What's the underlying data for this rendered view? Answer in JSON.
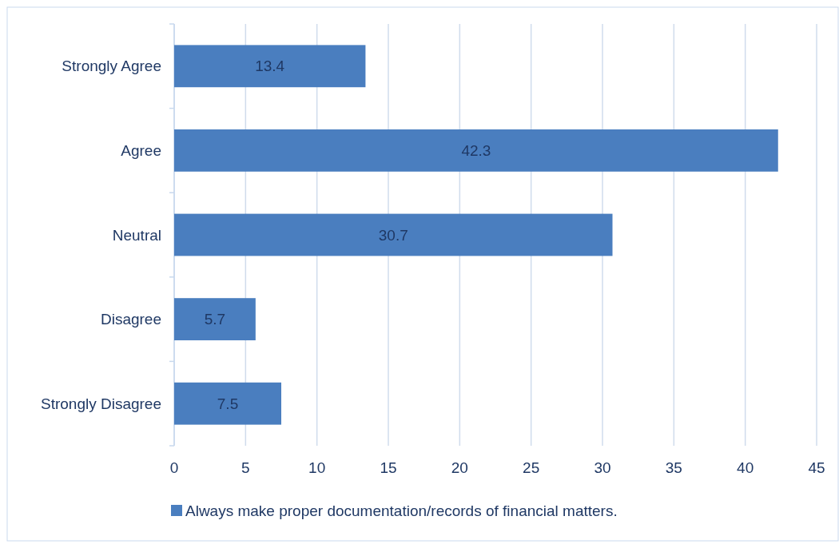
{
  "chart_data": {
    "type": "bar",
    "orientation": "horizontal",
    "categories": [
      "Strongly Agree",
      "Agree",
      "Neutral",
      "Disagree",
      "Strongly Disagree"
    ],
    "series": [
      {
        "name": "Always make proper documentation/records of financial matters.",
        "color": "#4a7ebf",
        "values": [
          13.4,
          42.3,
          30.7,
          5.7,
          7.5
        ]
      }
    ],
    "xlim": [
      0,
      45
    ],
    "xticks": [
      0,
      5,
      10,
      15,
      20,
      25,
      30,
      35,
      40,
      45
    ],
    "grid": "x",
    "legend": "bottom",
    "data_labels": true
  }
}
